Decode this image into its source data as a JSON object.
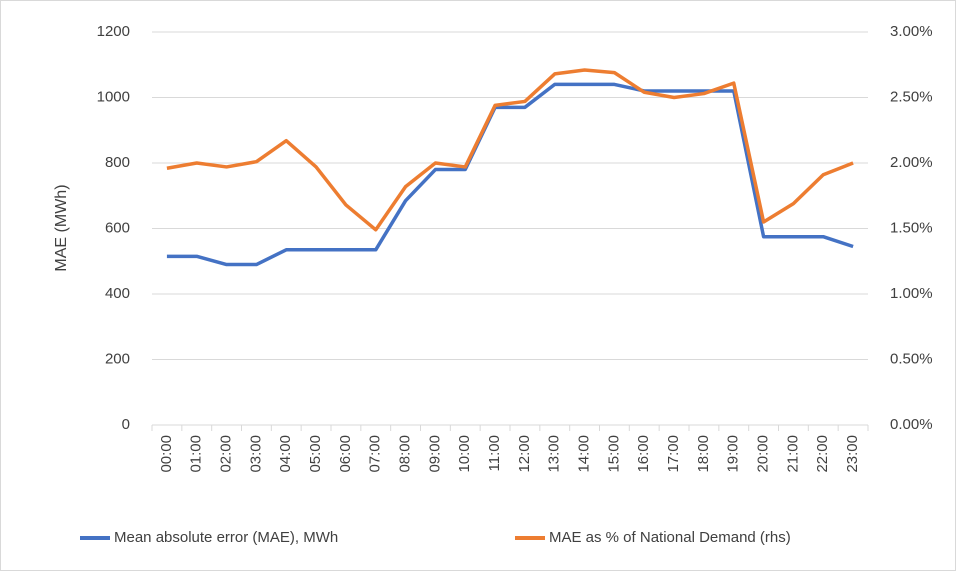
{
  "chart_data": {
    "type": "line",
    "y_label": "MAE (MWh)",
    "categories": [
      "00:00",
      "01:00",
      "02:00",
      "03:00",
      "04:00",
      "05:00",
      "06:00",
      "07:00",
      "08:00",
      "09:00",
      "10:00",
      "11:00",
      "12:00",
      "13:00",
      "14:00",
      "15:00",
      "16:00",
      "17:00",
      "18:00",
      "19:00",
      "20:00",
      "21:00",
      "22:00",
      "23:00"
    ],
    "series": [
      {
        "name": "Mean absolute error (MAE), MWh",
        "color": "#4472c4",
        "values": [
          515,
          515,
          490,
          490,
          535,
          535,
          535,
          535,
          685,
          780,
          780,
          970,
          970,
          1040,
          1040,
          1040,
          1020,
          1020,
          1020,
          1020,
          575,
          575,
          575,
          545
        ]
      },
      {
        "name": "MAE as % of National Demand (rhs)",
        "color": "#ed7d31",
        "axis": "y2",
        "values": [
          1.96,
          2.0,
          1.97,
          2.01,
          2.17,
          1.97,
          1.68,
          1.49,
          1.82,
          2.0,
          1.97,
          2.44,
          2.47,
          2.68,
          2.71,
          2.69,
          2.54,
          2.5,
          2.53,
          2.61,
          1.55,
          1.69,
          1.91,
          2.0
        ]
      }
    ],
    "ylim": [
      0,
      1200
    ],
    "yticks": [
      0,
      200,
      400,
      600,
      800,
      1000,
      1200
    ],
    "y2lim": [
      0,
      3
    ],
    "y2ticks": [
      {
        "value": 0,
        "label": "0.00%"
      },
      {
        "value": 0.5,
        "label": "0.50%"
      },
      {
        "value": 1,
        "label": "1.00%"
      },
      {
        "value": 1.5,
        "label": "1.50%"
      },
      {
        "value": 2,
        "label": "2.00%"
      },
      {
        "value": 2.5,
        "label": "2.50%"
      },
      {
        "value": 3,
        "label": "3.00%"
      }
    ],
    "grid": true,
    "legend": "bottom"
  }
}
